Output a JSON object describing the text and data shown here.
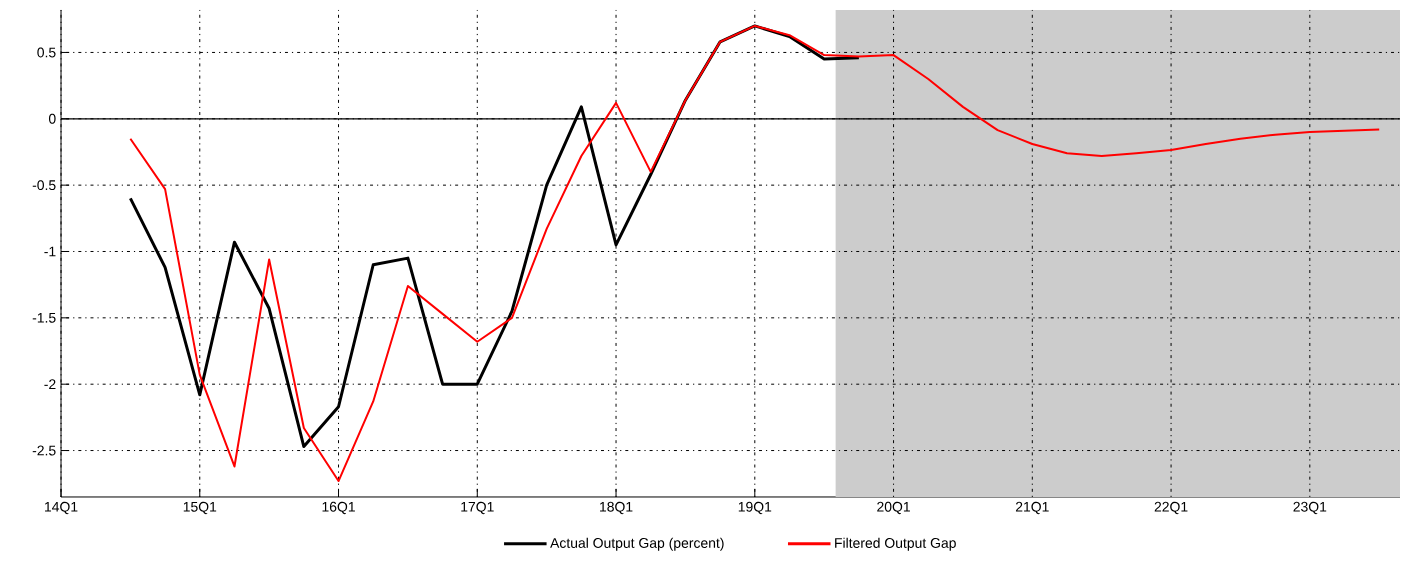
{
  "chart_data": {
    "type": "line",
    "categories": [
      "14Q1",
      null,
      null,
      null,
      "15Q1",
      null,
      null,
      null,
      "16Q1",
      null,
      null,
      null,
      "17Q1",
      null,
      null,
      null,
      "18Q1",
      null,
      null,
      null,
      "19Q1",
      null,
      null,
      null,
      "20Q1",
      null,
      null,
      null,
      "21Q1",
      null,
      null,
      null,
      "22Q1",
      null,
      null,
      null,
      "23Q1",
      null,
      null
    ],
    "series": [
      {
        "name": "Actual Output Gap (percent)",
        "color": "#000000",
        "values": [
          null,
          null,
          -0.6,
          -1.12,
          -2.08,
          -0.93,
          -1.43,
          -2.47,
          -2.17,
          -1.1,
          -1.05,
          -2.0,
          -2.0,
          -1.45,
          -0.5,
          0.09,
          -0.95,
          -0.42,
          0.14,
          0.58,
          0.7,
          0.62,
          0.45,
          0.46,
          null,
          null,
          null,
          null,
          null,
          null,
          null,
          null,
          null,
          null,
          null,
          null,
          null,
          null,
          null
        ]
      },
      {
        "name": "Filtered Output Gap",
        "color": "#ff0000",
        "values": [
          null,
          null,
          -0.15,
          -0.53,
          -1.93,
          -2.62,
          -1.06,
          -2.33,
          -2.73,
          -2.13,
          -1.26,
          -1.47,
          -1.68,
          -1.5,
          -0.83,
          -0.28,
          0.12,
          -0.4,
          0.14,
          0.58,
          0.7,
          0.63,
          0.48,
          0.47,
          0.48,
          0.3,
          0.09,
          -0.085,
          -0.19,
          -0.26,
          -0.28,
          -0.26,
          -0.235,
          -0.19,
          -0.15,
          -0.12,
          -0.1,
          -0.09,
          -0.08
        ]
      }
    ],
    "ylim": [
      -2.85,
      0.82
    ],
    "yticks": [
      -2.5,
      -2,
      -1.5,
      -1,
      -0.5,
      0,
      0.5
    ],
    "ref_lines": [
      {
        "axis": "y",
        "value": 0,
        "color": "#000000",
        "line_style": "solid"
      }
    ],
    "grid": true,
    "legend": "bottom",
    "marker": "none",
    "line_style": "solid"
  }
}
